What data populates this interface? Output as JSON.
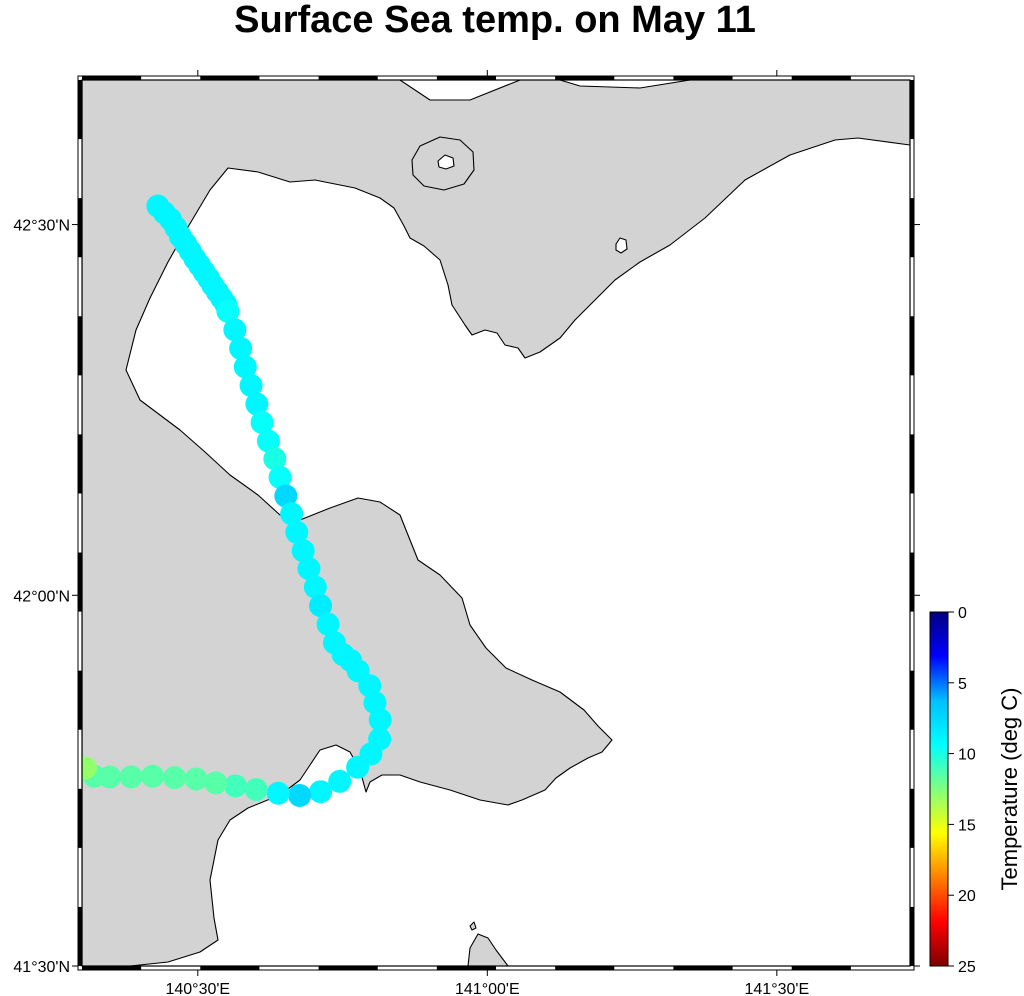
{
  "title": "Surface Sea temp. on May 11",
  "map": {
    "lon_range": [
      140.3,
      141.73
    ],
    "lat_range": [
      41.5,
      42.695
    ],
    "land_color": "#d3d3d3",
    "sea_color": "#ffffff",
    "lon_ticks": [
      {
        "value": 140.5,
        "label": "140°30'E"
      },
      {
        "value": 141.0,
        "label": "141°00'E"
      },
      {
        "value": 141.5,
        "label": "141°30'E"
      }
    ],
    "lat_ticks": [
      {
        "value": 41.5,
        "label": "41°30'N"
      },
      {
        "value": 42.0,
        "label": "42°00'N"
      },
      {
        "value": 42.5,
        "label": "42°30'N"
      }
    ]
  },
  "colorbar": {
    "label": "Temperature (deg C)",
    "min": 0,
    "max": 25,
    "ticks": [
      0,
      5,
      10,
      15,
      20,
      25
    ],
    "colors": [
      "#00007f",
      "#0000ff",
      "#00bfff",
      "#00ffff",
      "#7fff7f",
      "#ffff00",
      "#ff7f00",
      "#ff0000",
      "#7f0000"
    ]
  },
  "chart_data": {
    "type": "scatter",
    "title": "Surface Sea temp. on May 11",
    "xlabel": "",
    "ylabel": "",
    "value_label": "Temperature (deg C)",
    "lon": [
      140.431,
      140.442,
      140.453,
      140.462,
      140.47,
      140.479,
      140.487,
      140.495,
      140.503,
      140.511,
      140.519,
      140.526,
      140.534,
      140.541,
      140.548,
      140.552,
      140.564,
      140.574,
      140.582,
      140.592,
      140.602,
      140.611,
      140.622,
      140.633,
      140.642,
      140.652,
      140.662,
      140.671,
      140.682,
      140.692,
      140.703,
      140.712,
      140.725,
      140.736,
      140.751,
      140.764,
      140.777,
      140.797,
      140.806,
      140.815,
      140.814,
      140.799,
      140.776,
      140.745,
      140.712,
      140.676,
      140.639,
      140.601,
      140.565,
      140.531,
      140.497,
      140.46,
      140.422,
      140.385,
      140.348,
      140.321,
      140.306
    ],
    "lat": [
      42.525,
      42.516,
      42.507,
      42.496,
      42.484,
      42.474,
      42.464,
      42.454,
      42.445,
      42.436,
      42.427,
      42.418,
      42.409,
      42.401,
      42.393,
      42.383,
      42.358,
      42.333,
      42.308,
      42.283,
      42.258,
      42.233,
      42.208,
      42.184,
      42.159,
      42.134,
      42.11,
      42.085,
      42.06,
      42.036,
      42.011,
      41.986,
      41.961,
      41.936,
      41.92,
      41.912,
      41.898,
      41.878,
      41.855,
      41.832,
      41.806,
      41.786,
      41.768,
      41.749,
      41.735,
      41.73,
      41.733,
      41.738,
      41.743,
      41.747,
      41.752,
      41.754,
      41.756,
      41.755,
      41.755,
      41.756,
      41.767
    ],
    "temperature": [
      9.0,
      9.0,
      9.0,
      9.0,
      9.0,
      9.0,
      9.0,
      9.0,
      9.0,
      9.0,
      9.0,
      9.0,
      9.0,
      9.0,
      9.0,
      9.5,
      9.0,
      9.0,
      9.0,
      9.0,
      9.0,
      9.5,
      9.5,
      10.0,
      9.5,
      7.5,
      9.0,
      9.0,
      9.0,
      9.0,
      9.0,
      8.5,
      9.0,
      9.0,
      9.0,
      9.0,
      9.0,
      9.0,
      9.0,
      9.0,
      9.0,
      9.0,
      9.0,
      9.0,
      9.0,
      7.5,
      9.0,
      11.0,
      11.0,
      11.5,
      11.5,
      11.5,
      11.5,
      11.5,
      11.5,
      11.5,
      13.0
    ]
  }
}
